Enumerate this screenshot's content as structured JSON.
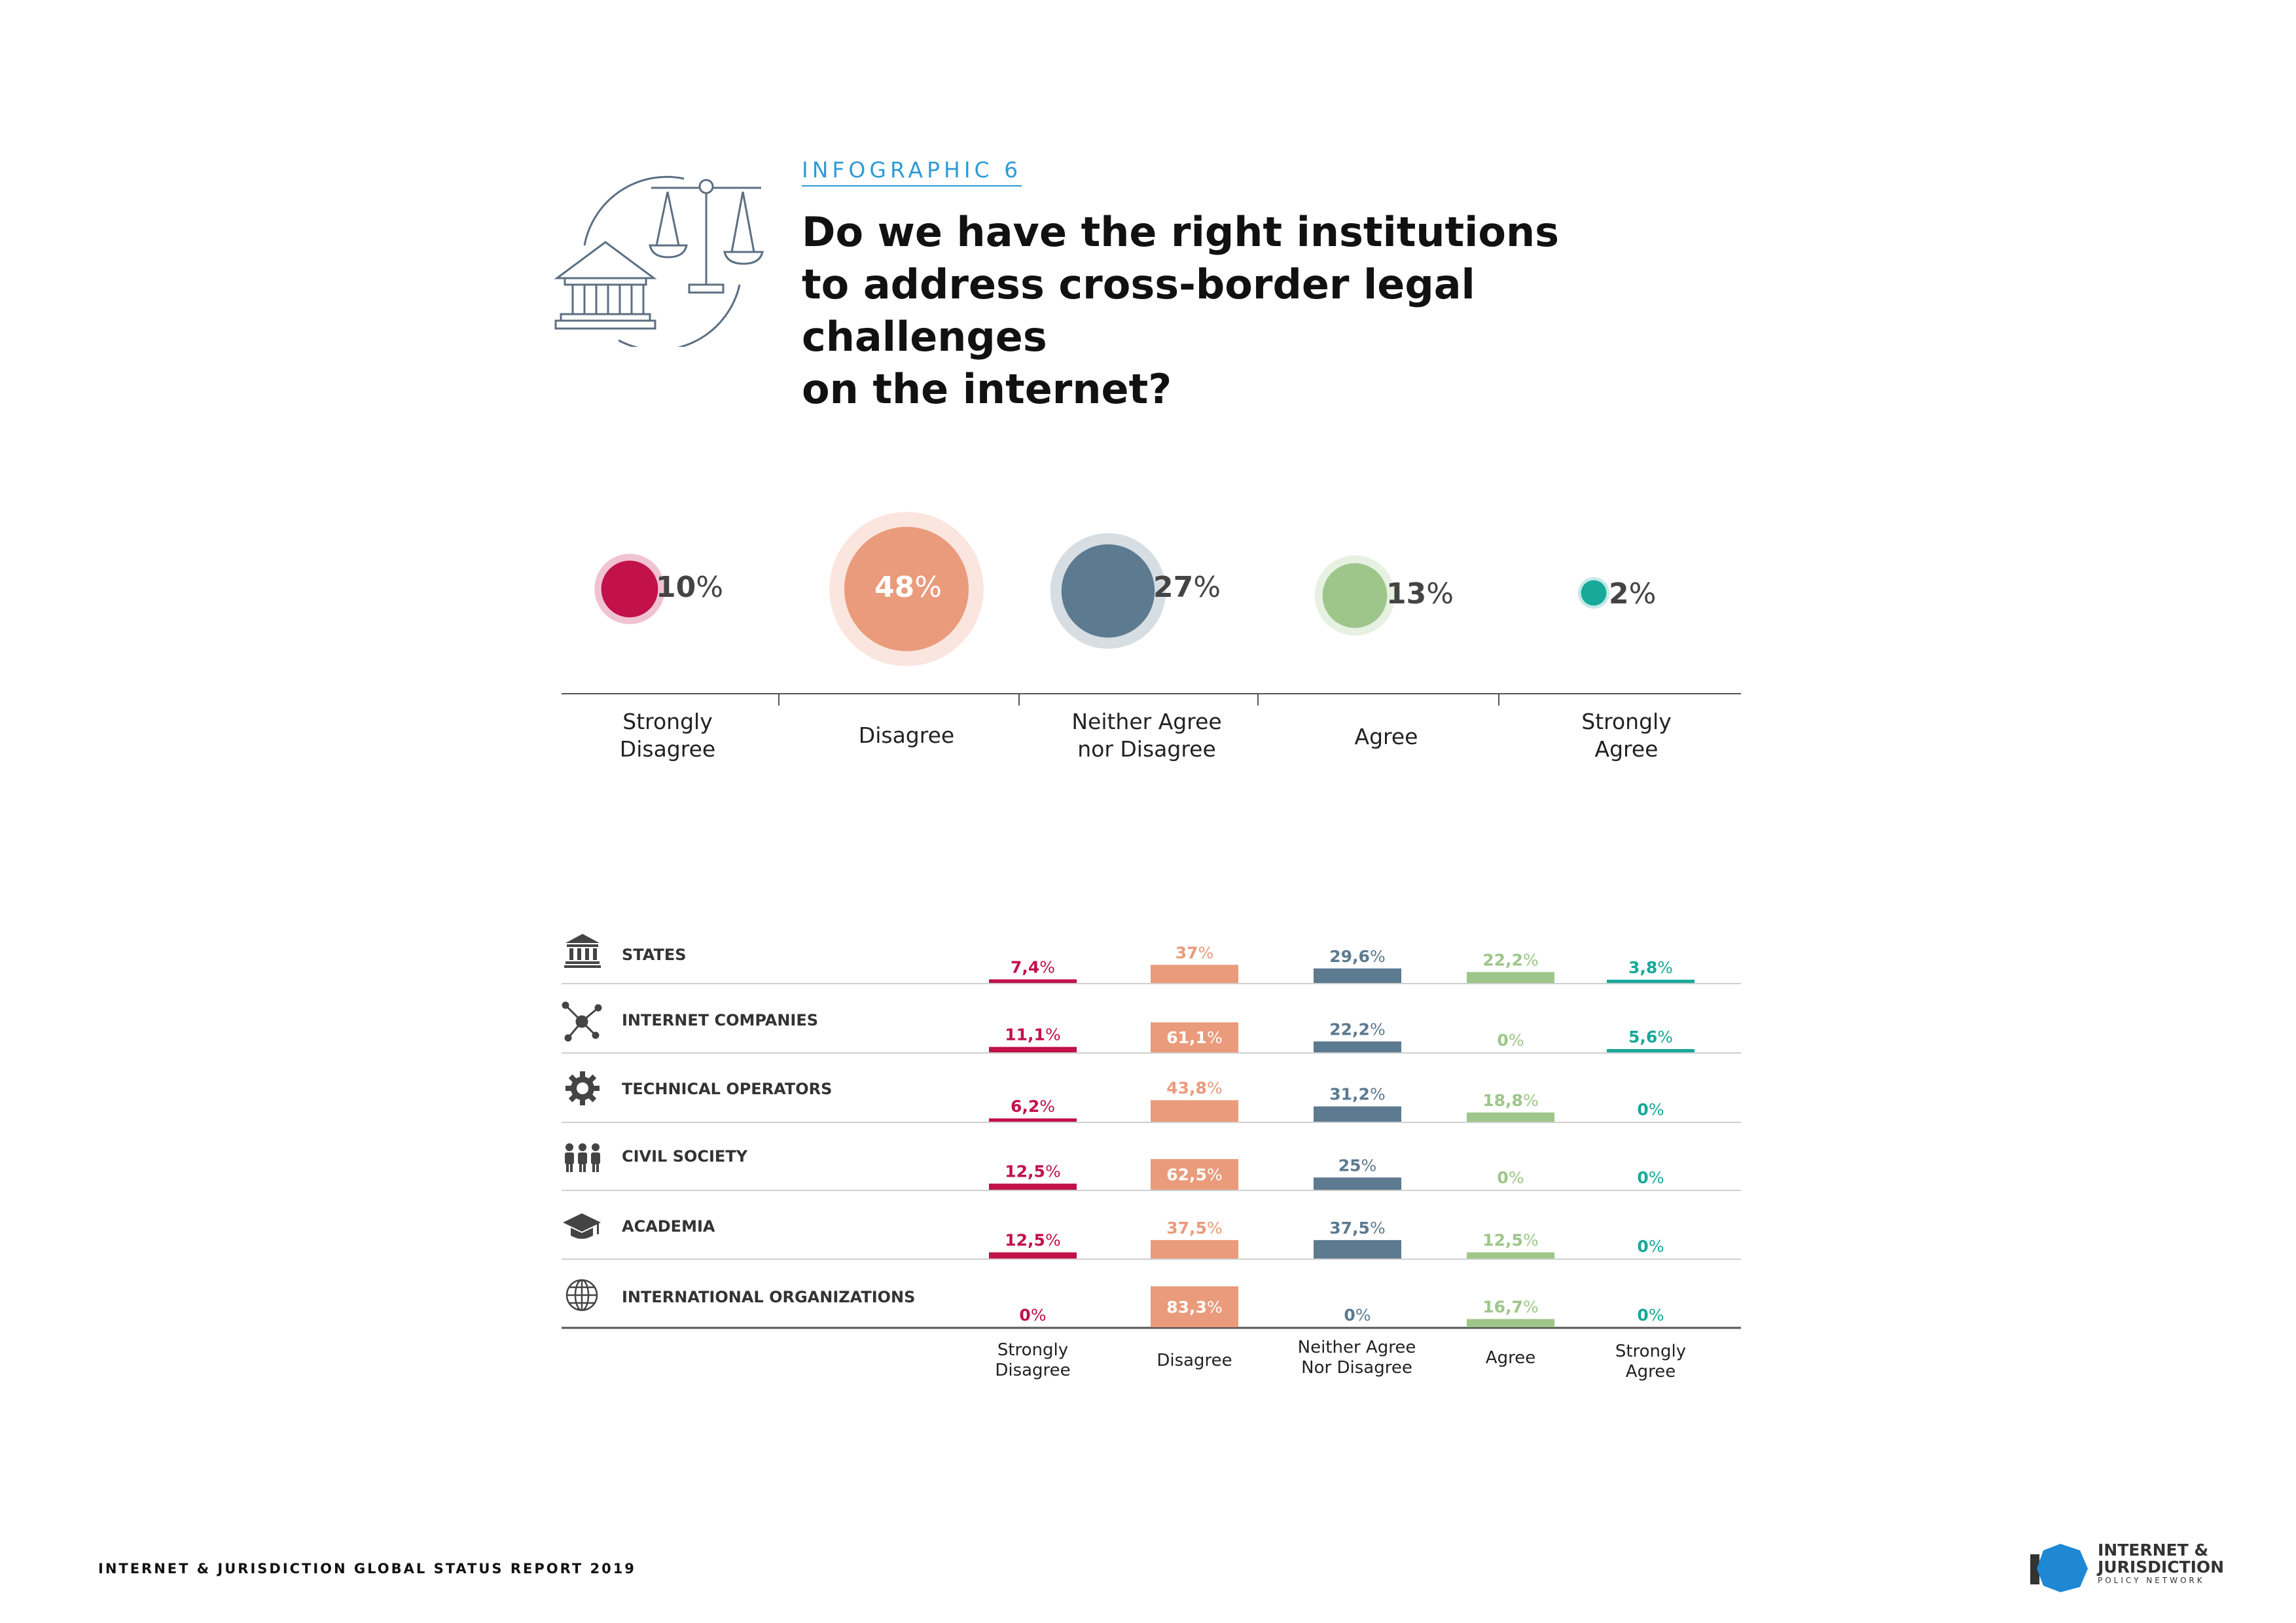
{
  "header": {
    "kicker": "INFOGRAPHIC 6",
    "title_lines": [
      "Do we have the right institutions",
      "to address cross-border legal challenges",
      "on the internet?"
    ]
  },
  "overall": {
    "items": [
      {
        "label_lines": [
          "Strongly",
          "Disagree"
        ],
        "value": "10",
        "unit": "%",
        "color": "#c2114b"
      },
      {
        "label_lines": [
          "Disagree"
        ],
        "value": "48",
        "unit": "%",
        "color": "#ea9b7b"
      },
      {
        "label_lines": [
          "Neither Agree",
          "nor Disagree"
        ],
        "value": "27",
        "unit": "%",
        "color": "#5c7a90"
      },
      {
        "label_lines": [
          "Agree"
        ],
        "value": "13",
        "unit": "%",
        "color": "#9ec68a"
      },
      {
        "label_lines": [
          "Strongly",
          "Agree"
        ],
        "value": "2",
        "unit": "%",
        "color": "#17a99a"
      }
    ]
  },
  "chart_data": {
    "type": "bar",
    "categories": [
      "Strongly Disagree",
      "Disagree",
      "Neither Agree Nor Disagree",
      "Agree",
      "Strongly Agree"
    ],
    "column_label_lines": [
      [
        "Strongly",
        "Disagree"
      ],
      [
        "Disagree"
      ],
      [
        "Neither Agree",
        "Nor Disagree"
      ],
      [
        "Agree"
      ],
      [
        "Strongly",
        "Agree"
      ]
    ],
    "colors": [
      "#c2114b",
      "#ea9b7b",
      "#5c7a90",
      "#9ec68a",
      "#17a99a"
    ],
    "series": [
      {
        "name": "STATES",
        "icon": "bank-icon",
        "values": [
          7.4,
          37,
          29.6,
          22.2,
          3.8
        ],
        "labels": [
          "7,4",
          "37",
          "29,6",
          "22,2",
          "3,8"
        ]
      },
      {
        "name": "INTERNET COMPANIES",
        "icon": "network-icon",
        "values": [
          11.1,
          61.1,
          22.2,
          0,
          5.6
        ],
        "labels": [
          "11,1",
          "61,1",
          "22,2",
          "0",
          "5,6"
        ]
      },
      {
        "name": "TECHNICAL OPERATORS",
        "icon": "gear-icon",
        "values": [
          6.2,
          43.8,
          31.2,
          18.8,
          0
        ],
        "labels": [
          "6,2",
          "43,8",
          "31,2",
          "18,8",
          "0"
        ]
      },
      {
        "name": "CIVIL SOCIETY",
        "icon": "people-icon",
        "values": [
          12.5,
          62.5,
          25,
          0,
          0
        ],
        "labels": [
          "12,5",
          "62,5",
          "25",
          "0",
          "0"
        ]
      },
      {
        "name": "ACADEMIA",
        "icon": "graduation-cap-icon",
        "values": [
          12.5,
          37.5,
          37.5,
          12.5,
          0
        ],
        "labels": [
          "12,5",
          "37,5",
          "37,5",
          "12,5",
          "0"
        ]
      },
      {
        "name": "INTERNATIONAL ORGANIZATIONS",
        "icon": "globe-icon",
        "values": [
          0,
          83.3,
          0,
          16.7,
          0
        ],
        "labels": [
          "0",
          "83,3",
          "0",
          "16,7",
          "0"
        ]
      }
    ],
    "unit": "%"
  },
  "footer": {
    "report": "INTERNET & JURISDICTION GLOBAL STATUS REPORT 2019",
    "logo_line1": "INTERNET &",
    "logo_line2": "JURISDICTION",
    "logo_line3": "POLICY NETWORK"
  }
}
